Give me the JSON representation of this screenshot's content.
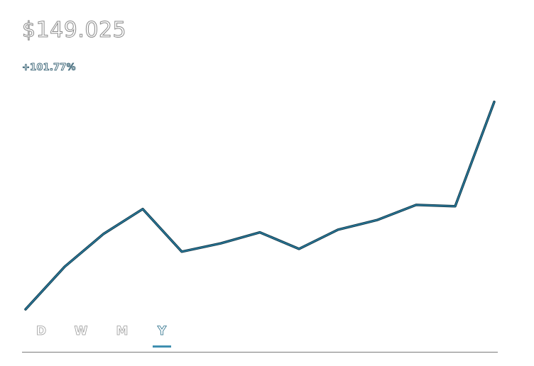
{
  "header": {
    "price": "$149.025",
    "change": "+101.77%"
  },
  "colors": {
    "line": "#2a7c9e",
    "line_outline": "#12394a",
    "active_tab": "#2b6f8a",
    "baseline": "#7a7a7a"
  },
  "chart_data": {
    "type": "line",
    "series": [
      {
        "values": [
          2,
          33,
          57,
          75,
          44,
          50,
          58,
          46,
          60,
          67,
          78,
          77,
          153
        ]
      }
    ],
    "ylim": [
      0,
      160
    ],
    "grid": false
  },
  "range_tabs": [
    {
      "label": "D",
      "active": false
    },
    {
      "label": "W",
      "active": false
    },
    {
      "label": "M",
      "active": false
    },
    {
      "label": "Y",
      "active": true
    }
  ]
}
